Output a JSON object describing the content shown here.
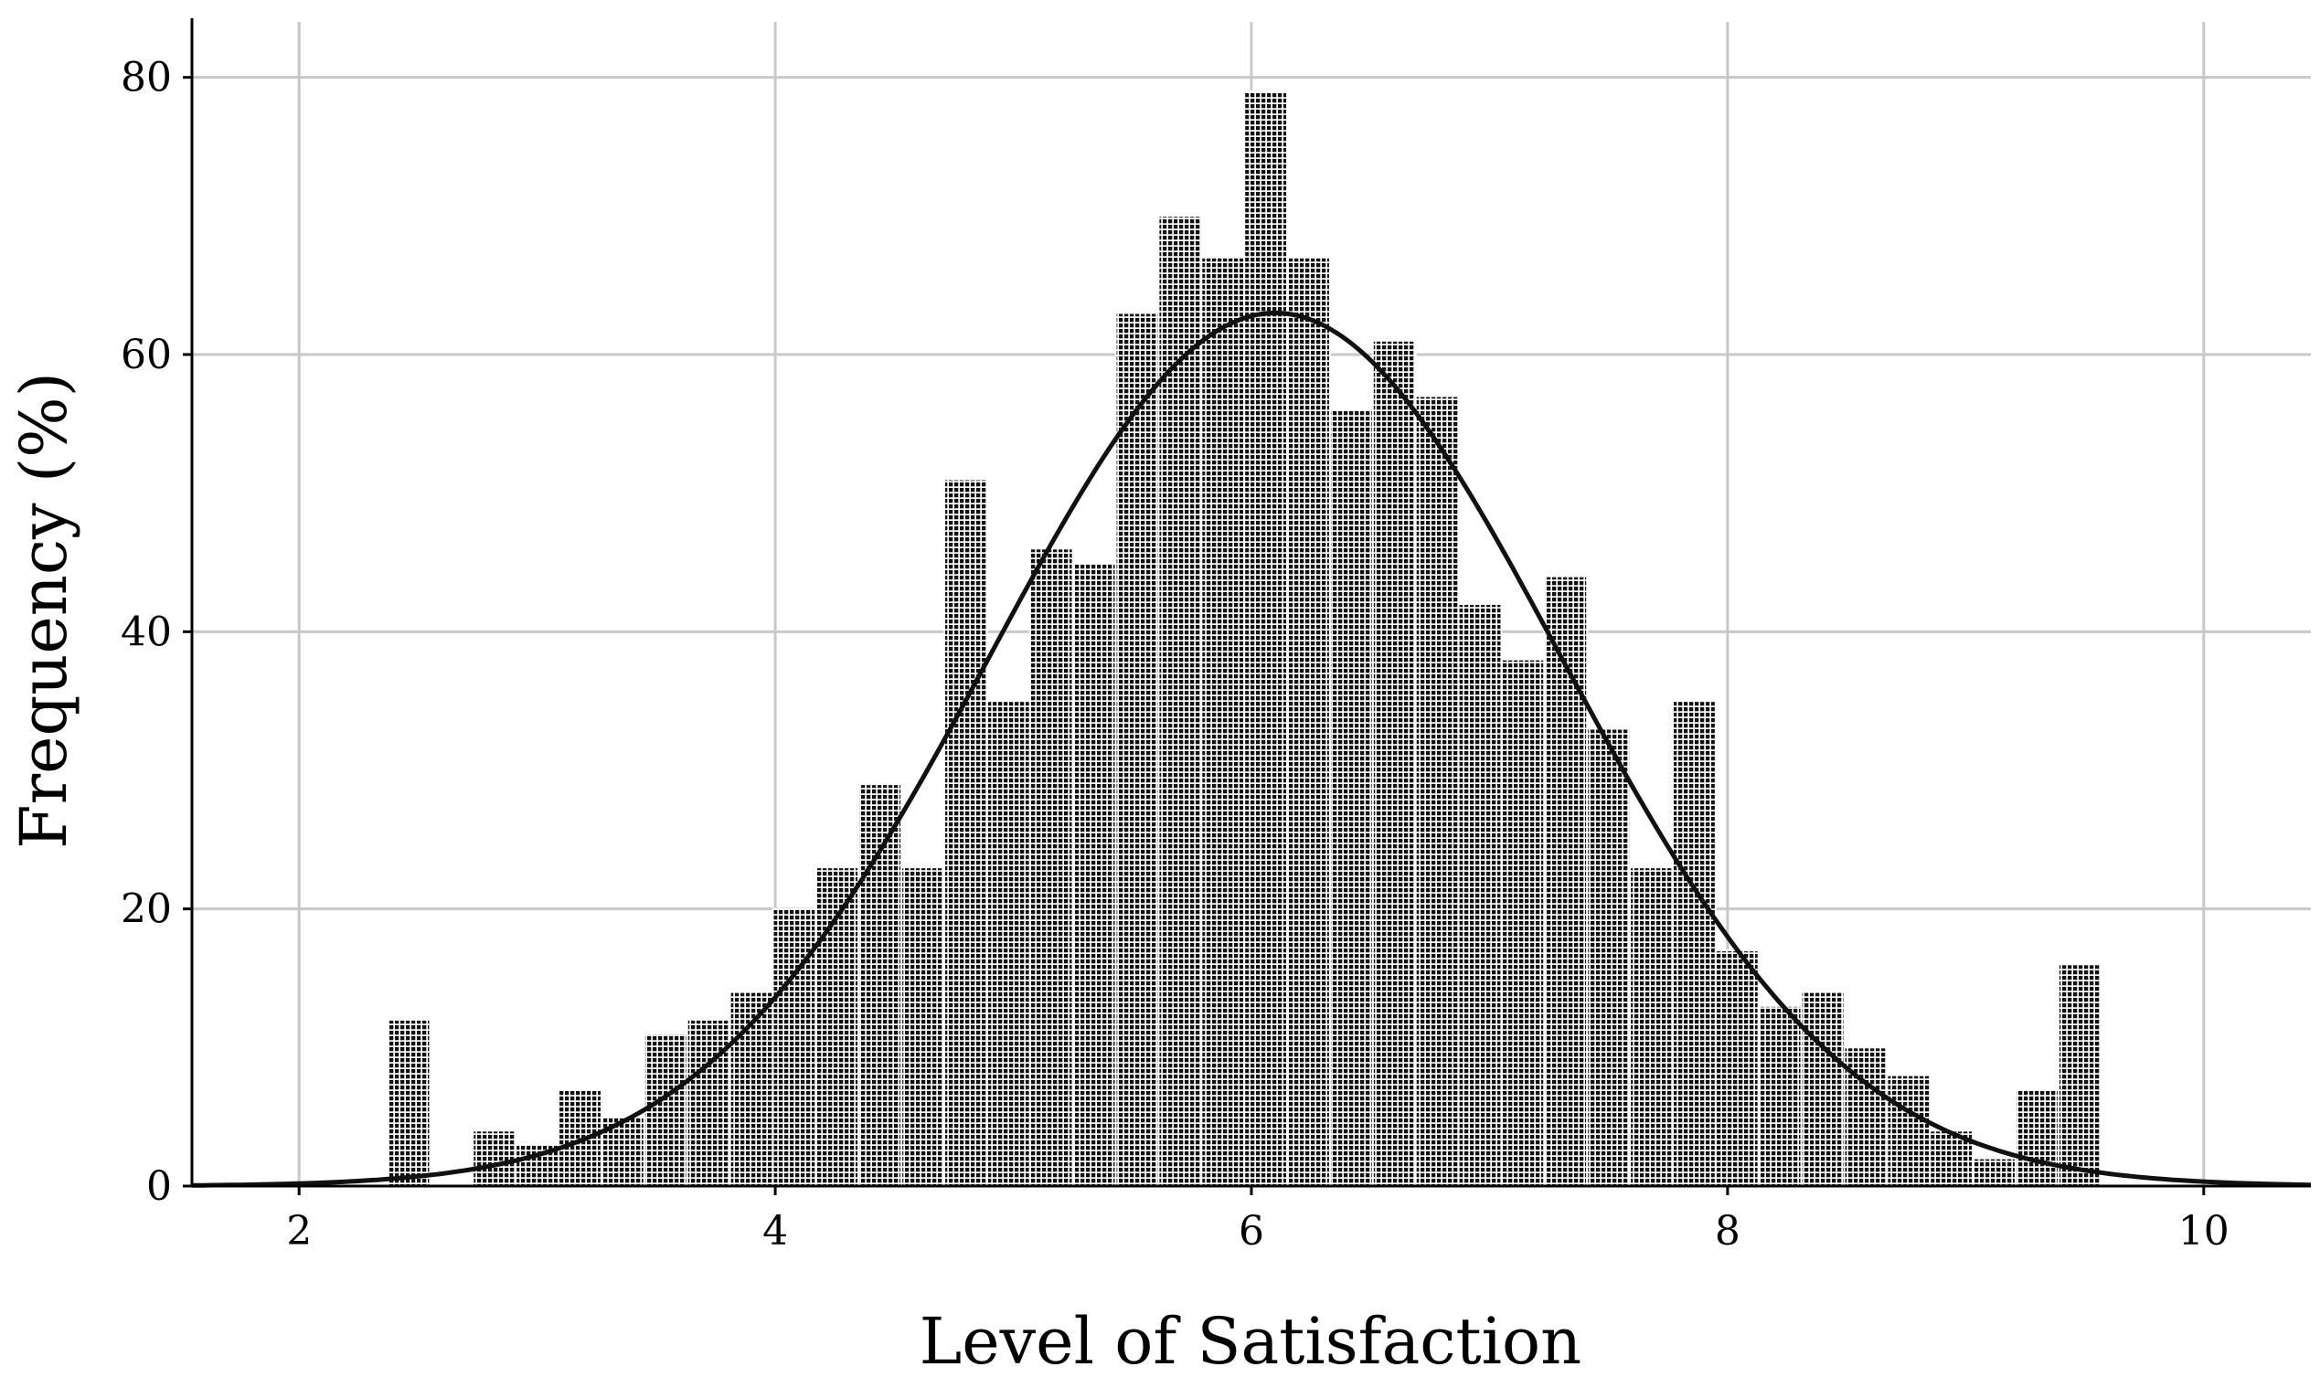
{
  "chart_data": {
    "type": "bar",
    "title": "",
    "xlabel": "Level of Satisfaction",
    "ylabel": "Frequency (%)",
    "xlim": [
      1.55,
      10.45
    ],
    "ylim": [
      0,
      84
    ],
    "xticks": [
      2,
      4,
      6,
      8,
      10
    ],
    "yticks": [
      0,
      20,
      40,
      60,
      80
    ],
    "xtick_labels": [
      "2",
      "4",
      "6",
      "8",
      "10"
    ],
    "ytick_labels": [
      "0",
      "20",
      "40",
      "60",
      "80"
    ],
    "grid": true,
    "legend": "none",
    "bin_width": 0.18,
    "bin_centers": [
      2.46,
      2.64,
      2.82,
      3.0,
      3.18,
      3.36,
      3.54,
      3.72,
      3.9,
      4.08,
      4.26,
      4.44,
      4.62,
      4.8,
      4.98,
      5.16,
      5.34,
      5.52,
      5.7,
      5.88,
      6.06,
      6.24,
      6.42,
      6.6,
      6.78,
      6.96,
      7.14,
      7.32,
      7.5,
      7.68,
      7.86,
      8.04,
      8.22,
      8.4,
      8.58,
      8.76,
      8.94,
      9.12,
      9.3,
      9.48
    ],
    "values": [
      12,
      0,
      4,
      3,
      7,
      5,
      11,
      12,
      14,
      20,
      23,
      29,
      23,
      51,
      35,
      46,
      45,
      63,
      70,
      67,
      79,
      67,
      56,
      61,
      57,
      42,
      38,
      44,
      33,
      23,
      35,
      17,
      13,
      14,
      10,
      8,
      4,
      2,
      7,
      16
    ],
    "normal_curve": {
      "mean": 6.1,
      "std": 1.2,
      "peak": 63
    },
    "colors": {
      "bar_fill": "#111111",
      "bar_grid": "#ffffff",
      "curve": "#111111",
      "gridline": "#c8c8c8",
      "axis": "#000000"
    }
  }
}
